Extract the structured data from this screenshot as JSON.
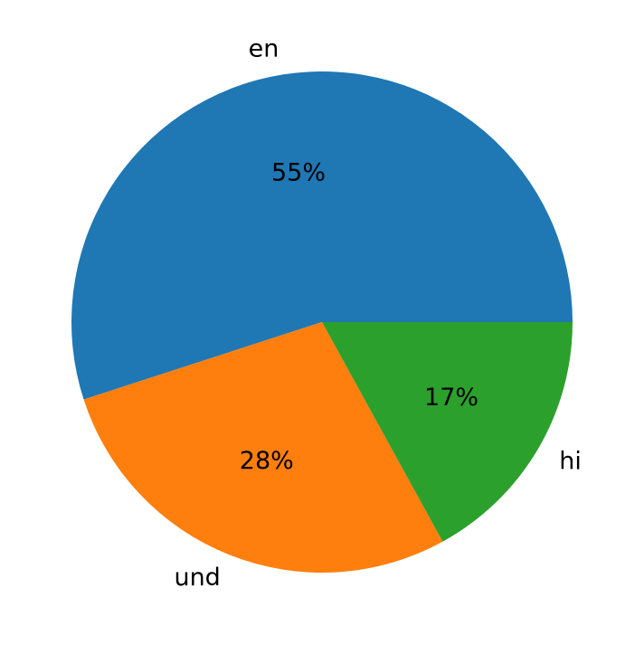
{
  "chart_data": {
    "type": "pie",
    "categories": [
      "en",
      "und",
      "hi"
    ],
    "values": [
      55,
      28,
      17
    ],
    "value_labels": [
      "55%",
      "28%",
      "17%"
    ],
    "colors": [
      "#1f77b4",
      "#ff7f0e",
      "#2ca02c"
    ]
  }
}
